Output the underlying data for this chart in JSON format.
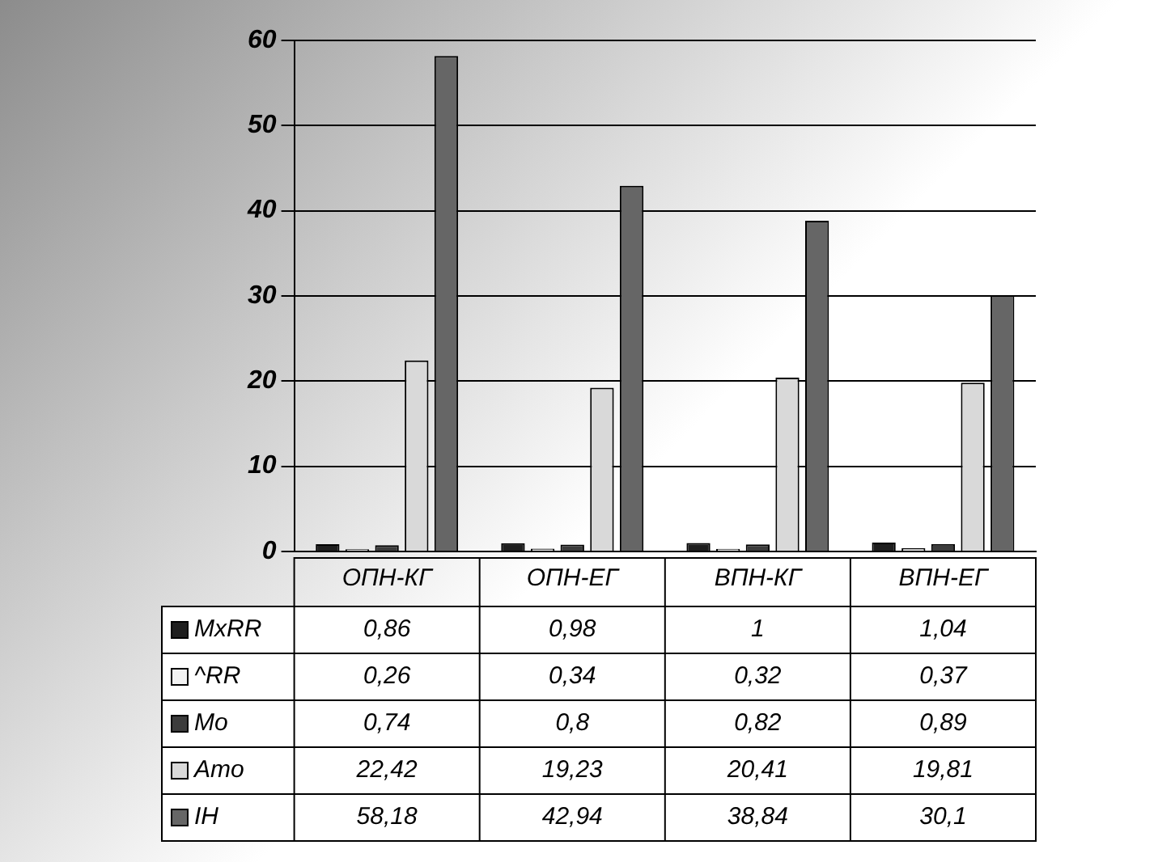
{
  "chart_data": {
    "type": "bar",
    "categories": [
      "ОПН-КГ",
      "ОПН-ЕГ",
      "ВПН-КГ",
      "ВПН-ЕГ"
    ],
    "series": [
      {
        "name": "MxRR",
        "color": "#1e1e1e",
        "values": [
          0.86,
          0.98,
          1,
          1.04
        ],
        "value_labels": [
          "0,86",
          "0,98",
          "1",
          "1,04"
        ]
      },
      {
        "name": "^RR",
        "color": "#f2f2f2",
        "values": [
          0.26,
          0.34,
          0.32,
          0.37
        ],
        "value_labels": [
          "0,26",
          "0,34",
          "0,32",
          "0,37"
        ]
      },
      {
        "name": "Mo",
        "color": "#3c3c3c",
        "values": [
          0.74,
          0.8,
          0.82,
          0.89
        ],
        "value_labels": [
          "0,74",
          "0,8",
          "0,82",
          "0,89"
        ]
      },
      {
        "name": "Amo",
        "color": "#d9d9d9",
        "values": [
          22.42,
          19.23,
          20.41,
          19.81
        ],
        "value_labels": [
          "22,42",
          "19,23",
          "20,41",
          "19,81"
        ]
      },
      {
        "name": "IH",
        "color": "#666666",
        "values": [
          58.18,
          42.94,
          38.84,
          30.1
        ],
        "value_labels": [
          "58,18",
          "42,94",
          "38,84",
          "30,1"
        ]
      }
    ],
    "ylim": [
      0,
      60
    ],
    "yticks": [
      0,
      10,
      20,
      30,
      40,
      50,
      60
    ],
    "grid": "y",
    "legend": "bottom"
  }
}
